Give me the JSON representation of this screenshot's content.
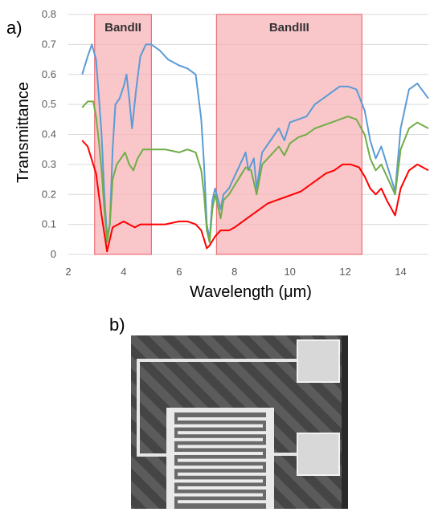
{
  "panel_a_label": "a)",
  "panel_b_label": "b)",
  "colors": {
    "blue": "#5b9bd5",
    "green": "#70ad47",
    "red": "#ff0000",
    "band_fill": "#f7b3b8",
    "band_stroke": "#ee6f78"
  },
  "chart_data": {
    "type": "line",
    "xlabel": "Wavelength (μm)",
    "ylabel": "Transmittance",
    "xlim": [
      2,
      15
    ],
    "ylim": [
      0,
      0.8
    ],
    "x_ticks": [
      "2",
      "4",
      "6",
      "8",
      "10",
      "12",
      "14"
    ],
    "y_ticks": [
      "0",
      "0.1",
      "0.2",
      "0.3",
      "0.4",
      "0.5",
      "0.6",
      "0.7",
      "0.8"
    ],
    "grid": true,
    "bands": [
      {
        "label": "BandII",
        "x0": 2.95,
        "x1": 5.0
      },
      {
        "label": "BandIII",
        "x0": 7.35,
        "x1": 12.6
      }
    ],
    "series": [
      {
        "color": "#5b9bd5",
        "points": [
          [
            2.5,
            0.6
          ],
          [
            2.7,
            0.66
          ],
          [
            2.85,
            0.7
          ],
          [
            3.0,
            0.65
          ],
          [
            3.1,
            0.53
          ],
          [
            3.2,
            0.4
          ],
          [
            3.3,
            0.2
          ],
          [
            3.4,
            0.06
          ],
          [
            3.5,
            0.1
          ],
          [
            3.6,
            0.35
          ],
          [
            3.7,
            0.5
          ],
          [
            3.85,
            0.52
          ],
          [
            4.0,
            0.56
          ],
          [
            4.1,
            0.6
          ],
          [
            4.2,
            0.52
          ],
          [
            4.3,
            0.42
          ],
          [
            4.45,
            0.55
          ],
          [
            4.6,
            0.66
          ],
          [
            4.8,
            0.7
          ],
          [
            5.0,
            0.7
          ],
          [
            5.3,
            0.68
          ],
          [
            5.6,
            0.65
          ],
          [
            6.0,
            0.63
          ],
          [
            6.3,
            0.62
          ],
          [
            6.6,
            0.6
          ],
          [
            6.8,
            0.45
          ],
          [
            6.9,
            0.3
          ],
          [
            7.0,
            0.1
          ],
          [
            7.1,
            0.05
          ],
          [
            7.2,
            0.18
          ],
          [
            7.3,
            0.22
          ],
          [
            7.5,
            0.15
          ],
          [
            7.6,
            0.2
          ],
          [
            7.8,
            0.22
          ],
          [
            8.0,
            0.26
          ],
          [
            8.2,
            0.3
          ],
          [
            8.4,
            0.34
          ],
          [
            8.5,
            0.28
          ],
          [
            8.7,
            0.32
          ],
          [
            8.8,
            0.22
          ],
          [
            9.0,
            0.34
          ],
          [
            9.3,
            0.38
          ],
          [
            9.6,
            0.42
          ],
          [
            9.8,
            0.38
          ],
          [
            10.0,
            0.44
          ],
          [
            10.3,
            0.45
          ],
          [
            10.6,
            0.46
          ],
          [
            10.9,
            0.5
          ],
          [
            11.2,
            0.52
          ],
          [
            11.5,
            0.54
          ],
          [
            11.8,
            0.56
          ],
          [
            12.1,
            0.56
          ],
          [
            12.4,
            0.55
          ],
          [
            12.7,
            0.48
          ],
          [
            12.9,
            0.38
          ],
          [
            13.1,
            0.32
          ],
          [
            13.3,
            0.36
          ],
          [
            13.5,
            0.3
          ],
          [
            13.8,
            0.21
          ],
          [
            14.0,
            0.42
          ],
          [
            14.3,
            0.55
          ],
          [
            14.6,
            0.57
          ],
          [
            15.0,
            0.52
          ]
        ]
      },
      {
        "color": "#70ad47",
        "points": [
          [
            2.5,
            0.49
          ],
          [
            2.7,
            0.51
          ],
          [
            2.9,
            0.51
          ],
          [
            3.0,
            0.46
          ],
          [
            3.1,
            0.38
          ],
          [
            3.2,
            0.28
          ],
          [
            3.3,
            0.15
          ],
          [
            3.4,
            0.04
          ],
          [
            3.5,
            0.1
          ],
          [
            3.6,
            0.25
          ],
          [
            3.75,
            0.3
          ],
          [
            3.9,
            0.32
          ],
          [
            4.05,
            0.34
          ],
          [
            4.2,
            0.3
          ],
          [
            4.35,
            0.28
          ],
          [
            4.5,
            0.32
          ],
          [
            4.7,
            0.35
          ],
          [
            5.0,
            0.35
          ],
          [
            5.5,
            0.35
          ],
          [
            6.0,
            0.34
          ],
          [
            6.3,
            0.35
          ],
          [
            6.6,
            0.34
          ],
          [
            6.8,
            0.28
          ],
          [
            6.9,
            0.2
          ],
          [
            7.0,
            0.08
          ],
          [
            7.1,
            0.04
          ],
          [
            7.2,
            0.15
          ],
          [
            7.3,
            0.2
          ],
          [
            7.5,
            0.12
          ],
          [
            7.6,
            0.18
          ],
          [
            7.8,
            0.2
          ],
          [
            8.0,
            0.23
          ],
          [
            8.2,
            0.26
          ],
          [
            8.4,
            0.29
          ],
          [
            8.6,
            0.28
          ],
          [
            8.8,
            0.2
          ],
          [
            9.0,
            0.3
          ],
          [
            9.3,
            0.33
          ],
          [
            9.6,
            0.36
          ],
          [
            9.8,
            0.33
          ],
          [
            10.0,
            0.37
          ],
          [
            10.3,
            0.39
          ],
          [
            10.6,
            0.4
          ],
          [
            10.9,
            0.42
          ],
          [
            11.2,
            0.43
          ],
          [
            11.5,
            0.44
          ],
          [
            11.8,
            0.45
          ],
          [
            12.1,
            0.46
          ],
          [
            12.4,
            0.45
          ],
          [
            12.7,
            0.4
          ],
          [
            12.9,
            0.32
          ],
          [
            13.1,
            0.28
          ],
          [
            13.3,
            0.3
          ],
          [
            13.5,
            0.26
          ],
          [
            13.8,
            0.2
          ],
          [
            14.0,
            0.35
          ],
          [
            14.3,
            0.42
          ],
          [
            14.6,
            0.44
          ],
          [
            15.0,
            0.42
          ]
        ]
      },
      {
        "color": "#ff0000",
        "points": [
          [
            2.5,
            0.38
          ],
          [
            2.7,
            0.36
          ],
          [
            2.9,
            0.3
          ],
          [
            3.0,
            0.27
          ],
          [
            3.1,
            0.2
          ],
          [
            3.2,
            0.13
          ],
          [
            3.3,
            0.07
          ],
          [
            3.4,
            0.01
          ],
          [
            3.5,
            0.05
          ],
          [
            3.6,
            0.09
          ],
          [
            3.8,
            0.1
          ],
          [
            4.0,
            0.11
          ],
          [
            4.2,
            0.1
          ],
          [
            4.4,
            0.09
          ],
          [
            4.6,
            0.1
          ],
          [
            4.8,
            0.1
          ],
          [
            5.0,
            0.1
          ],
          [
            5.5,
            0.1
          ],
          [
            6.0,
            0.11
          ],
          [
            6.3,
            0.11
          ],
          [
            6.6,
            0.1
          ],
          [
            6.8,
            0.08
          ],
          [
            6.9,
            0.05
          ],
          [
            7.0,
            0.02
          ],
          [
            7.1,
            0.03
          ],
          [
            7.3,
            0.06
          ],
          [
            7.5,
            0.08
          ],
          [
            7.8,
            0.08
          ],
          [
            8.0,
            0.09
          ],
          [
            8.3,
            0.11
          ],
          [
            8.6,
            0.13
          ],
          [
            8.9,
            0.15
          ],
          [
            9.2,
            0.17
          ],
          [
            9.5,
            0.18
          ],
          [
            9.8,
            0.19
          ],
          [
            10.1,
            0.2
          ],
          [
            10.4,
            0.21
          ],
          [
            10.7,
            0.23
          ],
          [
            11.0,
            0.25
          ],
          [
            11.3,
            0.27
          ],
          [
            11.6,
            0.28
          ],
          [
            11.9,
            0.3
          ],
          [
            12.2,
            0.3
          ],
          [
            12.5,
            0.29
          ],
          [
            12.7,
            0.26
          ],
          [
            12.9,
            0.22
          ],
          [
            13.1,
            0.2
          ],
          [
            13.3,
            0.22
          ],
          [
            13.5,
            0.18
          ],
          [
            13.8,
            0.13
          ],
          [
            14.0,
            0.22
          ],
          [
            14.3,
            0.28
          ],
          [
            14.6,
            0.3
          ],
          [
            15.0,
            0.28
          ]
        ]
      }
    ]
  }
}
